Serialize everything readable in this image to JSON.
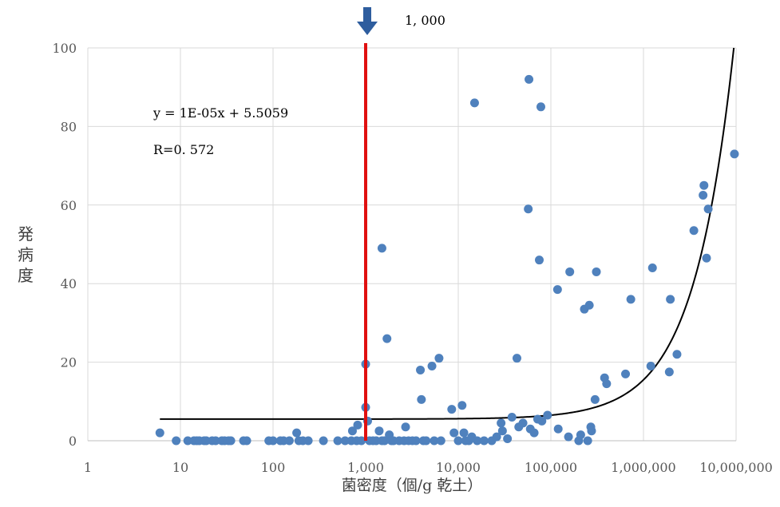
{
  "chart_data": {
    "type": "scatter",
    "x_scale": "log",
    "xlim": [
      1,
      10000000
    ],
    "ylim": [
      0,
      100
    ],
    "grid": true,
    "xlabel": "菌密度（個/g 乾土）",
    "ylabel": "発病度",
    "x_tick_labels": [
      "1",
      "10",
      "100",
      "1,000",
      "10,000",
      "100,000",
      "1,000,000",
      "10,000,000"
    ],
    "y_tick_labels": [
      "0",
      "20",
      "40",
      "60",
      "80",
      "100"
    ],
    "colors": {
      "points": "#4f81bd",
      "trendline": "#000000",
      "threshold": "#e01010",
      "arrow": "#2e5d9e",
      "grid": "#d9d9d9"
    },
    "annotations": {
      "equation": "y = 1E-05x + 5.5059",
      "r_value": "R=0. 572",
      "threshold_label": "1, 000",
      "threshold_x": 1000
    },
    "trendline": {
      "slope": 1e-05,
      "intercept": 5.5059
    },
    "points": [
      [
        6,
        2
      ],
      [
        9,
        0
      ],
      [
        12,
        0
      ],
      [
        14,
        0
      ],
      [
        15,
        0
      ],
      [
        16,
        0
      ],
      [
        18,
        0
      ],
      [
        19,
        0
      ],
      [
        22,
        0
      ],
      [
        24,
        0
      ],
      [
        28,
        0
      ],
      [
        30,
        0
      ],
      [
        33,
        0
      ],
      [
        35,
        0
      ],
      [
        48,
        0
      ],
      [
        52,
        0
      ],
      [
        90,
        0
      ],
      [
        100,
        0
      ],
      [
        120,
        0
      ],
      [
        130,
        0
      ],
      [
        150,
        0
      ],
      [
        180,
        2
      ],
      [
        190,
        0
      ],
      [
        210,
        0
      ],
      [
        240,
        0
      ],
      [
        350,
        0
      ],
      [
        500,
        0
      ],
      [
        600,
        0
      ],
      [
        700,
        0
      ],
      [
        720,
        2.5
      ],
      [
        800,
        0
      ],
      [
        820,
        4
      ],
      [
        900,
        0
      ],
      [
        1000,
        19.5
      ],
      [
        1000,
        8.5
      ],
      [
        1050,
        5
      ],
      [
        1100,
        0
      ],
      [
        1200,
        0
      ],
      [
        1300,
        0
      ],
      [
        1400,
        2.5
      ],
      [
        1500,
        49
      ],
      [
        1500,
        0
      ],
      [
        1600,
        0
      ],
      [
        1700,
        26
      ],
      [
        1800,
        1.5
      ],
      [
        1900,
        0
      ],
      [
        2000,
        0
      ],
      [
        2300,
        0
      ],
      [
        2600,
        0
      ],
      [
        2700,
        3.5
      ],
      [
        2900,
        0
      ],
      [
        3200,
        0
      ],
      [
        3500,
        0
      ],
      [
        3900,
        18
      ],
      [
        4000,
        10.5
      ],
      [
        4200,
        0
      ],
      [
        4500,
        0
      ],
      [
        5200,
        19
      ],
      [
        5500,
        0
      ],
      [
        6200,
        21
      ],
      [
        6500,
        0
      ],
      [
        8500,
        8
      ],
      [
        9000,
        2
      ],
      [
        10000,
        0
      ],
      [
        11000,
        9
      ],
      [
        11500,
        2
      ],
      [
        12000,
        0
      ],
      [
        13000,
        0
      ],
      [
        14000,
        1
      ],
      [
        15000,
        86
      ],
      [
        16000,
        0
      ],
      [
        19000,
        0
      ],
      [
        23000,
        0
      ],
      [
        26000,
        1
      ],
      [
        29000,
        4.5
      ],
      [
        30000,
        2.5
      ],
      [
        34000,
        0.5
      ],
      [
        38000,
        6
      ],
      [
        43000,
        21
      ],
      [
        45000,
        3.5
      ],
      [
        50000,
        4.5
      ],
      [
        57000,
        59
      ],
      [
        58000,
        92
      ],
      [
        60000,
        3
      ],
      [
        66000,
        2
      ],
      [
        72000,
        5.5
      ],
      [
        75000,
        46
      ],
      [
        78000,
        85
      ],
      [
        80000,
        5
      ],
      [
        92000,
        6.5
      ],
      [
        118000,
        38.5
      ],
      [
        120000,
        3
      ],
      [
        155000,
        1
      ],
      [
        160000,
        43
      ],
      [
        200000,
        0
      ],
      [
        210000,
        1.5
      ],
      [
        230000,
        33.5
      ],
      [
        250000,
        0
      ],
      [
        260000,
        34.5
      ],
      [
        270000,
        3.5
      ],
      [
        275000,
        2.5
      ],
      [
        300000,
        10.5
      ],
      [
        310000,
        43
      ],
      [
        380000,
        16
      ],
      [
        400000,
        14.5
      ],
      [
        640000,
        17
      ],
      [
        730000,
        36
      ],
      [
        1200000,
        19
      ],
      [
        1250000,
        44
      ],
      [
        1900000,
        17.5
      ],
      [
        1950000,
        36
      ],
      [
        2300000,
        22
      ],
      [
        3500000,
        53.5
      ],
      [
        4400000,
        62.5
      ],
      [
        4500000,
        65
      ],
      [
        4800000,
        46.5
      ],
      [
        5000000,
        59
      ],
      [
        9600000,
        73
      ]
    ]
  }
}
